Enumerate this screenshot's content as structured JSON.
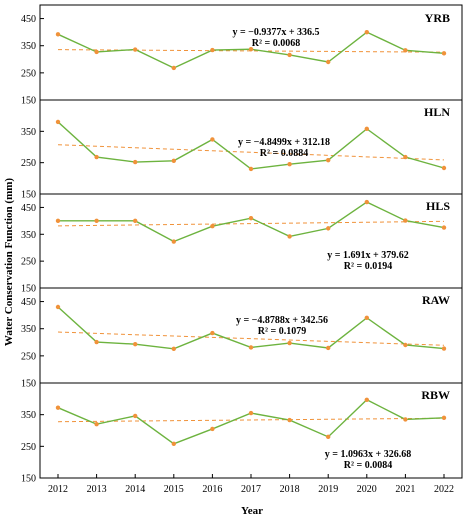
{
  "chart_data": {
    "type": "line",
    "xlabel": "Year",
    "ylabel": "Water Conservation Function (mm)",
    "x": [
      2012,
      2013,
      2014,
      2015,
      2016,
      2017,
      2018,
      2019,
      2020,
      2021,
      2022
    ],
    "colors": {
      "line": "#6db33f",
      "marker": "#f0923a",
      "trend": "#f0923a",
      "frame": "#000000"
    },
    "grid": false,
    "panels": [
      {
        "label": "YRB",
        "ylim": [
          150,
          500
        ],
        "yticks": [
          150,
          250,
          350,
          450
        ],
        "values": [
          392,
          327,
          336,
          268,
          334,
          337,
          316,
          290,
          400,
          333,
          322
        ],
        "trend": {
          "slope": -0.9377,
          "intercept": 336.5
        },
        "equation": "y = −0.9377x + 336.5",
        "r2": "R² = 0.0068"
      },
      {
        "label": "HLN",
        "ylim": [
          150,
          450
        ],
        "yticks": [
          150,
          250,
          350
        ],
        "values": [
          380,
          268,
          252,
          256,
          324,
          230,
          245,
          258,
          358,
          268,
          233
        ],
        "trend": {
          "slope": -4.8499,
          "intercept": 312.18
        },
        "equation": "y = −4.8499x + 312.18",
        "r2": "R² = 0.0884"
      },
      {
        "label": "HLS",
        "ylim": [
          150,
          500
        ],
        "yticks": [
          150,
          250,
          350,
          450
        ],
        "values": [
          400,
          400,
          400,
          323,
          380,
          410,
          342,
          372,
          470,
          401,
          375
        ],
        "trend": {
          "slope": 1.691,
          "intercept": 379.62
        },
        "equation": "y = 1.691x + 379.62",
        "r2": "R² = 0.0194"
      },
      {
        "label": "RAW",
        "ylim": [
          150,
          500
        ],
        "yticks": [
          150,
          250,
          350,
          450
        ],
        "values": [
          430,
          301,
          293,
          276,
          334,
          281,
          297,
          279,
          390,
          290,
          277
        ],
        "trend": {
          "slope": -4.8788,
          "intercept": 342.56
        },
        "equation": "y = −4.8788x + 342.56",
        "r2": "R² = 0.1079"
      },
      {
        "label": "RBW",
        "ylim": [
          150,
          450
        ],
        "yticks": [
          150,
          250,
          350
        ],
        "values": [
          372,
          320,
          346,
          258,
          305,
          355,
          333,
          280,
          397,
          335,
          340
        ],
        "trend": {
          "slope": 1.0963,
          "intercept": 326.68
        },
        "equation": "y = 1.0963x + 326.68",
        "r2": "R² = 0.0084"
      }
    ]
  }
}
